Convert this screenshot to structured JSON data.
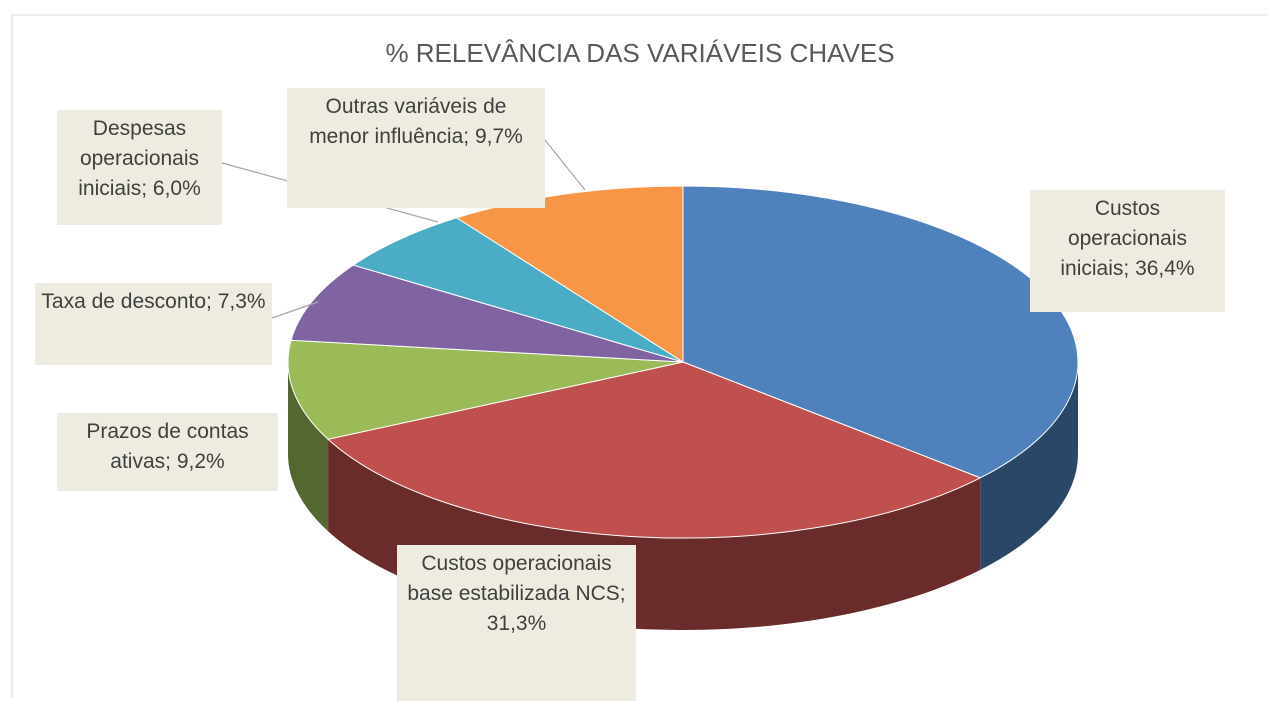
{
  "chart_data": {
    "type": "pie3d",
    "title": "% RELEVÂNCIA DAS VARIÁVEIS CHAVES",
    "values": [
      36.4,
      31.3,
      9.2,
      7.3,
      6.0,
      9.7
    ],
    "value_labels": [
      "Custos operacionais iniciais; 36,4%",
      "Custos operacionais base estabilizada NCS; 31,3%",
      "Prazos de contas ativas; 9,2%",
      "Taxa de desconto; 7,3%",
      "Despesas operacionais iniciais; 6,0%",
      "Outras variáveis de menor influência; 9,7%"
    ],
    "colors": [
      "#4f81bd",
      "#c0504d",
      "#9bbb59",
      "#8064a2",
      "#4bacc6",
      "#f79646"
    ]
  }
}
